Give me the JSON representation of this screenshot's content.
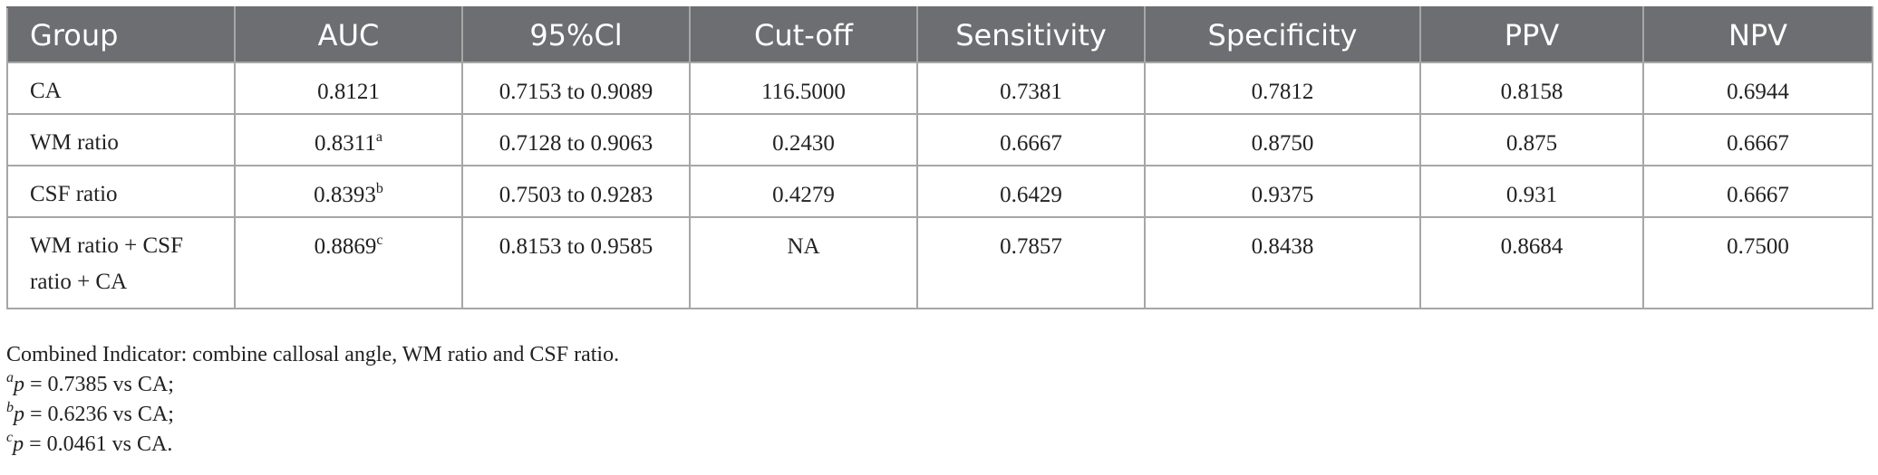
{
  "table": {
    "headers": [
      "Group",
      "AUC",
      "95%Cl",
      "Cut-off",
      "Sensitivity",
      "Specificity",
      "PPV",
      "NPV"
    ],
    "rows": [
      [
        {
          "text": "CA"
        },
        {
          "text": "0.8121"
        },
        {
          "text": "0.7153 to 0.9089"
        },
        {
          "text": "116.5000"
        },
        {
          "text": "0.7381"
        },
        {
          "text": "0.7812"
        },
        {
          "text": "0.8158"
        },
        {
          "text": "0.6944"
        }
      ],
      [
        {
          "text": "WM ratio"
        },
        {
          "text": "0.8311",
          "sup": "a"
        },
        {
          "text": "0.7128 to 0.9063"
        },
        {
          "text": "0.2430"
        },
        {
          "text": "0.6667"
        },
        {
          "text": "0.8750"
        },
        {
          "text": "0.875"
        },
        {
          "text": "0.6667"
        }
      ],
      [
        {
          "text": "CSF ratio"
        },
        {
          "text": "0.8393",
          "sup": "b"
        },
        {
          "text": "0.7503 to 0.9283"
        },
        {
          "text": "0.4279"
        },
        {
          "text": "0.6429"
        },
        {
          "text": "0.9375"
        },
        {
          "text": "0.931"
        },
        {
          "text": "0.6667"
        }
      ],
      [
        {
          "text": "WM ratio + CSF ratio + CA"
        },
        {
          "text": "0.8869",
          "sup": "c"
        },
        {
          "text": "0.8153 to 0.9585"
        },
        {
          "text": "NA"
        },
        {
          "text": "0.7857"
        },
        {
          "text": "0.8438"
        },
        {
          "text": "0.8684"
        },
        {
          "text": "0.7500"
        }
      ]
    ]
  },
  "notes": [
    {
      "text": "Combined Indicator: combine callosal angle, WM ratio and CSF ratio."
    },
    {
      "sup": "a",
      "italic": "p",
      "text": " = 0.7385 vs CA;"
    },
    {
      "sup": "b",
      "italic": "p",
      "text": " = 0.6236 vs CA;"
    },
    {
      "sup": "c",
      "italic": "p",
      "text": " = 0.0461 vs CA."
    }
  ]
}
